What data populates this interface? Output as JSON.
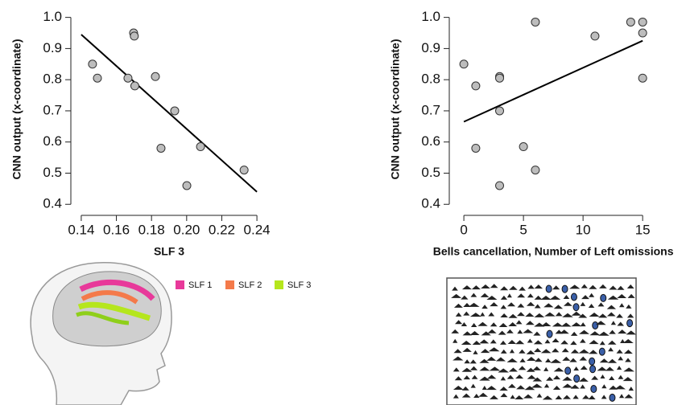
{
  "chart_data": [
    {
      "type": "scatter",
      "xlabel": "SLF 3",
      "ylabel": "CNN output (x-coordinate)",
      "x": [
        0.1464,
        0.1492,
        0.1698,
        0.1702,
        0.1666,
        0.1705,
        0.1822,
        0.1932,
        0.1854,
        0.2001,
        0.2079,
        0.2327
      ],
      "y": [
        0.85,
        0.805,
        0.95,
        0.94,
        0.805,
        0.78,
        0.81,
        0.7,
        0.58,
        0.46,
        0.585,
        0.51
      ],
      "trend_line": {
        "x": [
          0.14,
          0.24
        ],
        "y": [
          0.945,
          0.44
        ]
      },
      "xlim": [
        0.135,
        0.245
      ],
      "ylim": [
        0.38,
        1.03
      ],
      "xticks": [
        0.14,
        0.16,
        0.18,
        {
          "value": 0.2,
          "label": "0.20"
        },
        0.22,
        0.24
      ],
      "yticks": [
        0.4,
        0.5,
        0.6,
        0.7,
        0.8,
        0.9,
        {
          "value": 1,
          "label": "1.0"
        }
      ],
      "marker_color": "#bdbdbd"
    },
    {
      "type": "scatter",
      "xlabel": "Bells cancellation, Number of Left omissions",
      "ylabel": "CNN output (x-coordinate)",
      "x": [
        0,
        1,
        1,
        3,
        3,
        3,
        3,
        5,
        6,
        6,
        11,
        14,
        15,
        15,
        15
      ],
      "y": [
        0.85,
        0.78,
        0.58,
        0.81,
        0.805,
        0.7,
        0.46,
        0.585,
        0.985,
        0.51,
        0.94,
        0.985,
        0.985,
        0.95,
        0.805
      ],
      "trend_line": {
        "x": [
          0,
          15
        ],
        "y": [
          0.665,
          0.925
        ]
      },
      "xlim": [
        -0.75,
        15.8
      ],
      "ylim": [
        0.38,
        1.03
      ],
      "xticks": [
        0,
        5,
        10,
        15
      ],
      "yticks": [
        0.4,
        0.5,
        0.6,
        0.7,
        0.8,
        0.9,
        {
          "value": 1,
          "label": "1.0"
        }
      ],
      "marker_color": "#bdbdbd"
    }
  ],
  "tract_legend": [
    {
      "name": "SLF 1",
      "color": "#e8399a"
    },
    {
      "name": "SLF 2",
      "color": "#f47a4a"
    },
    {
      "name": "SLF 3",
      "color": "#b5e61d"
    }
  ]
}
